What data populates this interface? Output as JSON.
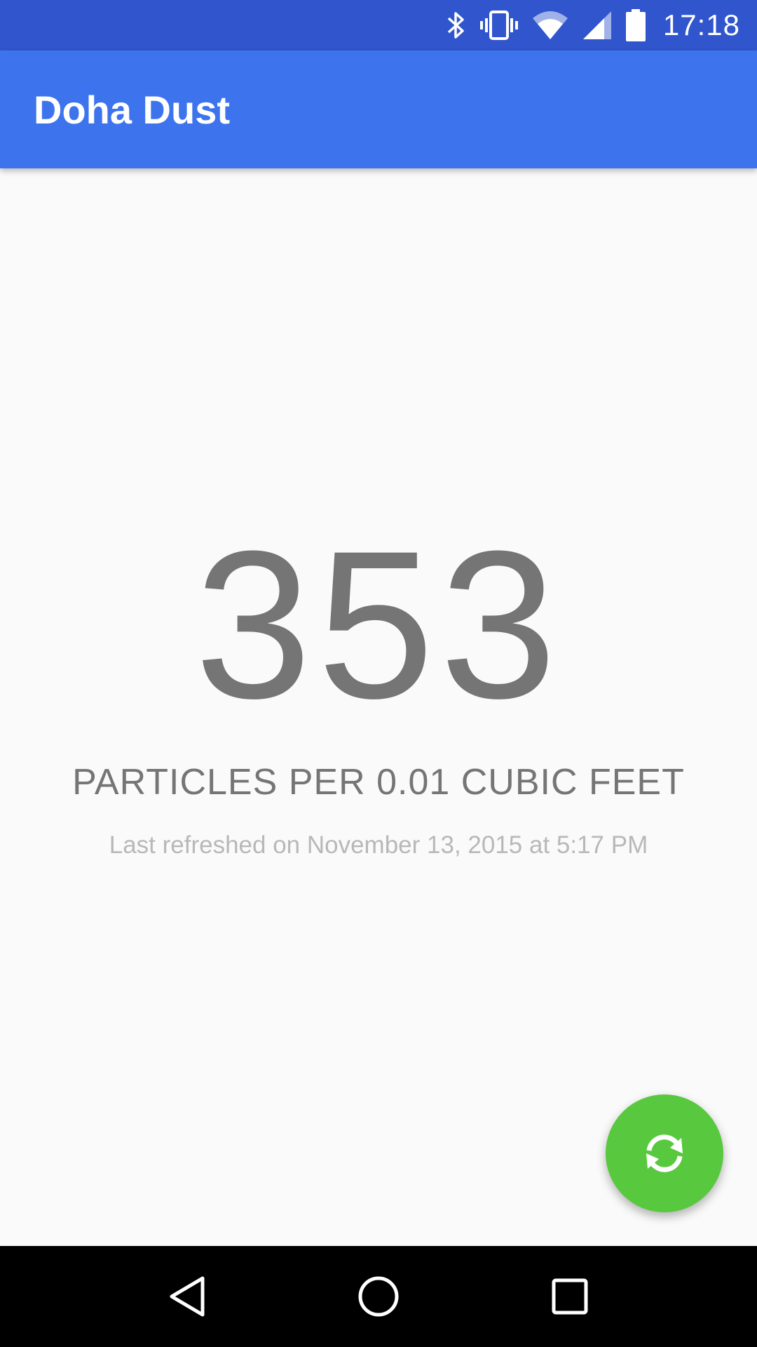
{
  "status_bar": {
    "time": "17:18",
    "icons": [
      "bluetooth-icon",
      "vibrate-icon",
      "wifi-icon",
      "cell-signal-icon",
      "battery-icon"
    ]
  },
  "app_bar": {
    "title": "Doha Dust"
  },
  "main": {
    "reading": "353",
    "unit": "PARTICLES PER 0.01 CUBIC FEET",
    "last_refreshed": "Last refreshed on November 13, 2015 at 5:17 PM"
  },
  "fab": {
    "icon": "refresh-icon",
    "color": "#58c83e"
  },
  "nav_bar": {
    "icons": [
      "back-icon",
      "home-icon",
      "recents-icon"
    ]
  },
  "colors": {
    "status_bar": "#3055cc",
    "app_bar": "#3d74ee",
    "background": "#fafafa",
    "reading_text": "#757575"
  }
}
